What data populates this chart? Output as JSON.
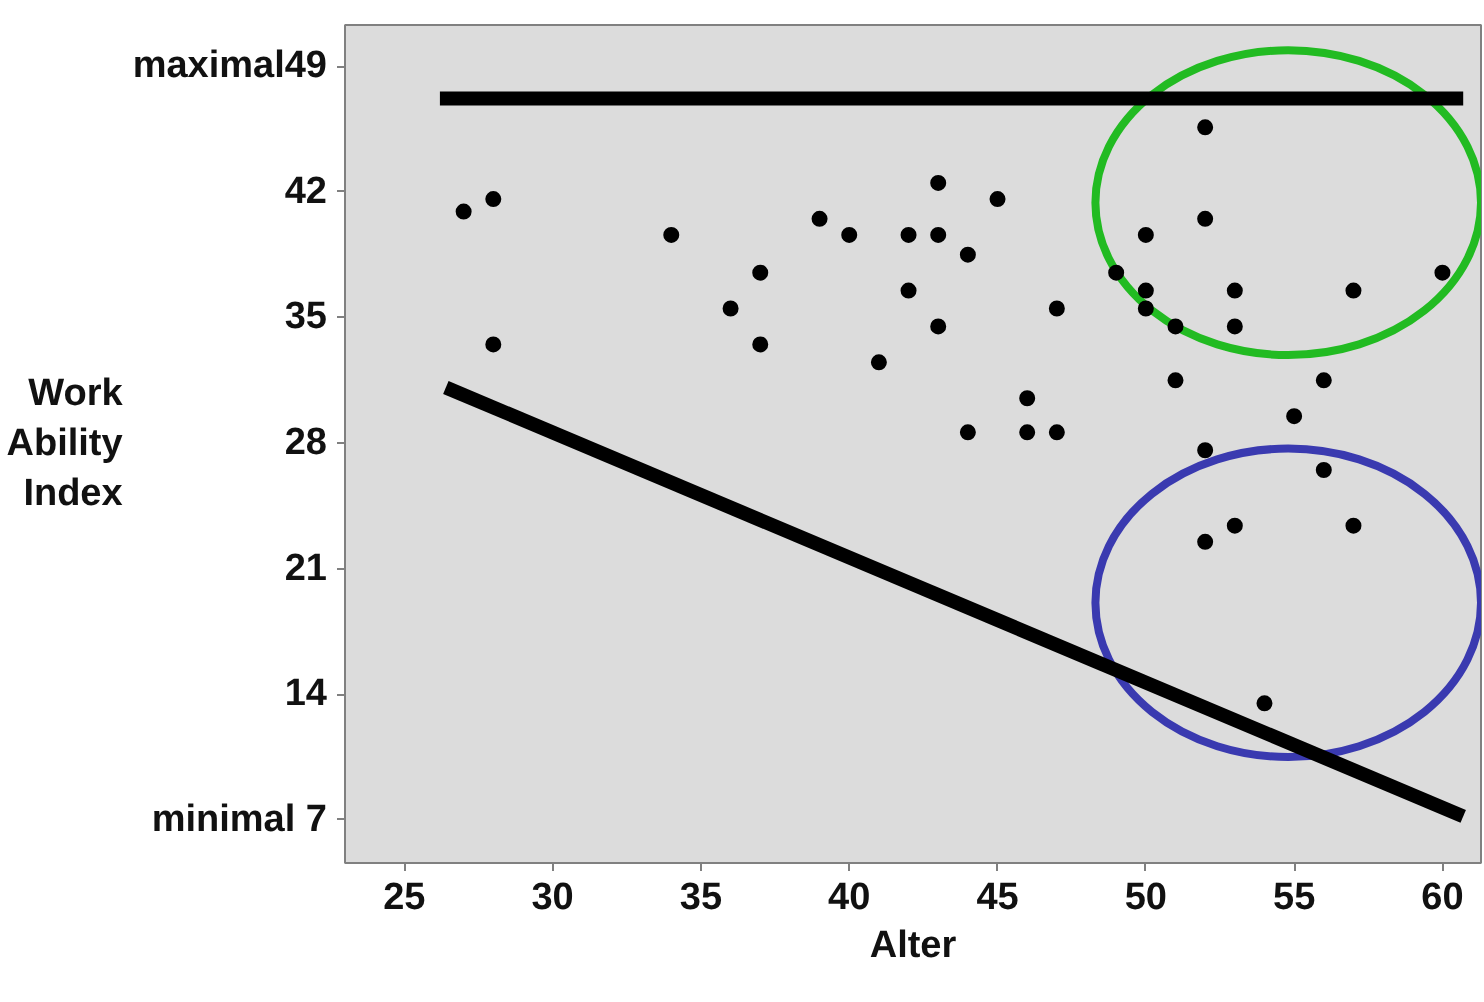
{
  "chart_data": {
    "type": "scatter",
    "xlabel": "Alter",
    "ylabel": "Work Ability Index",
    "xlim": [
      23,
      61.3
    ],
    "ylim": [
      4.6,
      51.3
    ],
    "xticks": [
      25,
      30,
      35,
      40,
      45,
      50,
      55,
      60
    ],
    "yticks": [
      {
        "value": 7,
        "label": "minimal 7"
      },
      14,
      21,
      28,
      35,
      42,
      {
        "value": 49,
        "label": "maximal49"
      }
    ],
    "grid": false,
    "series": [
      {
        "marker": "circle",
        "color": "#000000",
        "x": [
          27,
          28,
          28,
          34,
          36,
          37,
          37,
          39,
          40,
          41,
          42,
          42,
          43,
          43,
          43,
          44,
          45,
          47,
          46,
          44,
          46,
          47,
          52,
          52,
          50,
          49,
          50,
          50,
          51,
          53,
          53,
          57,
          60,
          51,
          56,
          55,
          52,
          56,
          53,
          52,
          57,
          54
        ],
        "values": [
          40.9,
          41.6,
          33.5,
          39.6,
          35.5,
          37.5,
          33.5,
          40.5,
          39.6,
          32.5,
          39.6,
          36.5,
          42.5,
          39.6,
          34.5,
          38.5,
          41.6,
          35.5,
          30.5,
          28.6,
          28.6,
          28.6,
          45.6,
          40.5,
          39.6,
          37.5,
          36.5,
          35.5,
          34.5,
          36.5,
          34.5,
          36.5,
          37.5,
          31.5,
          31.5,
          29.5,
          27.6,
          26.5,
          23.4,
          22.5,
          23.4,
          13.5
        ]
      },
      {
        "type": "line",
        "marker": "none",
        "color": "#000000",
        "x": [
          26.2,
          60.7
        ],
        "values": [
          47.2,
          47.2
        ]
      },
      {
        "type": "line",
        "marker": "none",
        "color": "#000000",
        "x": [
          26.4,
          60.7
        ],
        "values": [
          31.1,
          7.2
        ]
      }
    ]
  }
}
